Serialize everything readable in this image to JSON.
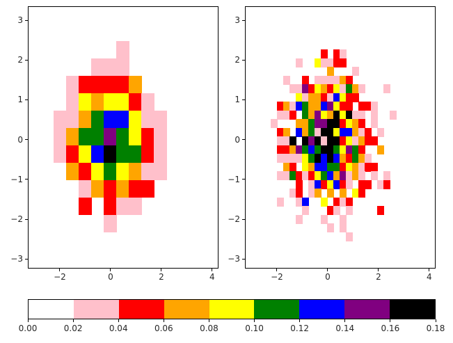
{
  "chart_data": [
    {
      "type": "heatmap",
      "title": "",
      "xlabel": "",
      "ylabel": "",
      "xlim": [
        -3.26,
        4.25
      ],
      "ylim": [
        -3.24,
        3.35
      ],
      "xticks": [
        "−2",
        "0",
        "2",
        "4"
      ],
      "xtick_values": [
        -2,
        0,
        2,
        4
      ],
      "yticks": [
        "3",
        "2",
        "1",
        "0",
        "−1",
        "−2",
        "−3"
      ],
      "ytick_values": [
        3,
        2,
        1,
        0,
        -1,
        -2,
        -3
      ],
      "bins": {
        "x_start": -2.24,
        "x_width": 0.494,
        "y_top": 2.48,
        "y_height": 0.437,
        "cols": 9,
        "rows": 11
      },
      "grid_legend": {
        ".": "0.00-0.02",
        "p": "0.02-0.04",
        "r": "0.04-0.06",
        "o": "0.06-0.08",
        "y": "0.08-0.10",
        "g": "0.10-0.12",
        "b": "0.12-0.14",
        "m": "0.14-0.16",
        "k": "0.16-0.18"
      },
      "grid": [
        ".....p...",
        "...ppp...",
        ".prrrro..",
        ".pyoyyrp.",
        "ppogbbypp",
        "poggmgyrp",
        "prybkggrp",
        ".orygyopp",
        "..pororr.",
        "..r.rpp..",
        "....p...."
      ]
    },
    {
      "type": "heatmap",
      "title": "",
      "xlabel": "",
      "ylabel": "",
      "xlim": [
        -3.26,
        4.25
      ],
      "ylim": [
        -3.24,
        3.35
      ],
      "xticks": [
        "−2",
        "0",
        "2",
        "4"
      ],
      "xtick_values": [
        -2,
        0,
        2,
        4
      ],
      "yticks": [
        "3",
        "2",
        "1",
        "0",
        "−1",
        "−2",
        "−3"
      ],
      "ytick_values": [
        3,
        2,
        1,
        0,
        -1,
        -2,
        -3
      ],
      "bins": {
        "x_start": -2.24,
        "x_width": 0.247,
        "y_top": 2.26,
        "y_height": 0.2185,
        "cols": 20,
        "rows": 22
      },
      "grid_legend": {
        ".": "0.00-0.02",
        "p": "0.02-0.04",
        "r": "0.04-0.06",
        "o": "0.06-0.08",
        "y": "0.08-0.10",
        "g": "0.10-0.12",
        "b": "0.12-0.14",
        "m": "0.14-0.16",
        "k": "0.16-0.18"
      },
      "grid": [
        "........r.rp........",
        "....p..ypprr........",
        ".........o...p......",
        "..p..r.ppppor.......",
        "...ppmryorypgop...p.",
        "....ypoorpbyrr......",
        ".ropbgoobmyrr.rrp...",
        ".ppr.gomyokykpp.p..p",
        "p...oogmmkkryor.p...",
        ".ro.bogpkkybbopr.p..",
        ".ppk.kmkpkkryporr...",
        ".rromgbgkkgymgr..o..",
        ".ppppygkbkborgop....",
        "..or.yobbggryoprr...",
        ".ppgrprygbompop.p.p.",
        "....r.pbrybrp.rr.pr.",
        "...pr.po.o.o.yr.....",
        ".p..pb..y.rpr.......",
        ".....p...rp.p....r..",
        "....p...p..p........",
        ".........p.p........",
        "............p......."
      ]
    }
  ],
  "colorbar": {
    "orientation": "horizontal",
    "boundaries": [
      0.0,
      0.02,
      0.04,
      0.06,
      0.08,
      0.1,
      0.12,
      0.14,
      0.16,
      0.18
    ],
    "tick_labels": [
      "0.00",
      "0.02",
      "0.04",
      "0.06",
      "0.08",
      "0.10",
      "0.12",
      "0.14",
      "0.16",
      "0.18"
    ],
    "colors": [
      "#ffffff",
      "#ffc0cb",
      "#ff0000",
      "#ffa500",
      "#ffff00",
      "#008000",
      "#0000ff",
      "#800080",
      "#000000"
    ],
    "color_names": [
      "white",
      "pink",
      "red",
      "orange",
      "yellow",
      "green",
      "blue",
      "purple",
      "black"
    ]
  },
  "palette": {
    ".": "#ffffff",
    "p": "#ffc0cb",
    "r": "#ff0000",
    "o": "#ffa500",
    "y": "#ffff00",
    "g": "#008000",
    "b": "#0000ff",
    "m": "#800080",
    "k": "#000000"
  }
}
